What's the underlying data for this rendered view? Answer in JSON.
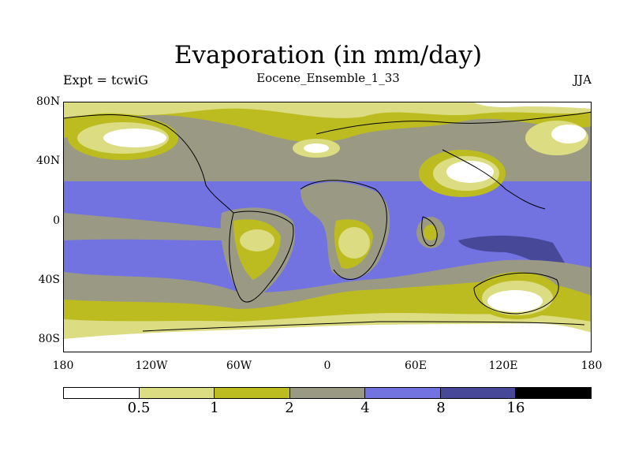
{
  "header": {
    "title": "Evaporation (in mm/day)",
    "subtitle": "Eocene_Ensemble_1_33",
    "left_label": "Expt = tcwiG",
    "right_label": "JJA"
  },
  "axes": {
    "lat_ticks": [
      "80N",
      "40N",
      "0",
      "40S",
      "80S"
    ],
    "lon_ticks": [
      "180",
      "120W",
      "60W",
      "0",
      "60E",
      "120E",
      "180"
    ]
  },
  "colorbar": {
    "colors": [
      "#ffffff",
      "#dcdc82",
      "#bcbc20",
      "#9a9a84",
      "#7272e0",
      "#484898",
      "#000000"
    ],
    "labels": [
      "0.5",
      "1",
      "2",
      "4",
      "8",
      "16"
    ]
  }
}
